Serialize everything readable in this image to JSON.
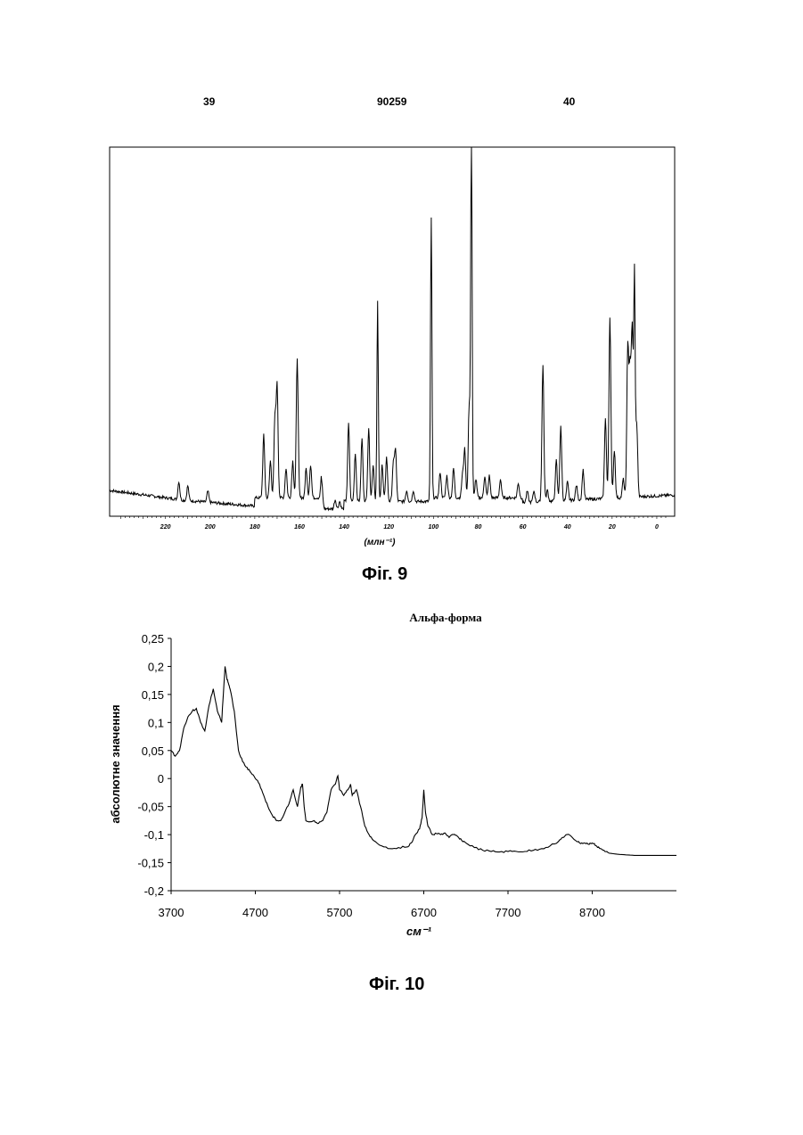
{
  "header": {
    "left": "39",
    "center": "90259",
    "right": "40"
  },
  "figures": {
    "fig9_caption": "Фіг. 9",
    "fig10_caption": "Фіг. 10"
  },
  "chart_data": [
    {
      "type": "line",
      "xlabel": "(млн⁻¹)",
      "xlim": [
        245,
        -8
      ],
      "xticks": [
        220,
        200,
        180,
        160,
        140,
        120,
        100,
        80,
        60,
        40,
        20,
        0
      ],
      "xtick_labels": [
        "220",
        "200",
        "180",
        "160",
        "140",
        "120",
        "100",
        "80",
        "60",
        "40",
        "20",
        "0"
      ],
      "ylim": [
        0,
        1
      ],
      "peaks": [
        [
          214,
          0.05
        ],
        [
          210,
          0.04
        ],
        [
          201,
          0.03
        ],
        [
          176,
          0.17
        ],
        [
          173,
          0.1
        ],
        [
          171,
          0.21
        ],
        [
          170,
          0.3
        ],
        [
          166,
          0.08
        ],
        [
          163,
          0.1
        ],
        [
          161,
          0.38
        ],
        [
          157,
          0.08
        ],
        [
          155,
          0.09
        ],
        [
          150,
          0.07
        ],
        [
          144,
          0.025
        ],
        [
          142,
          0.02
        ],
        [
          138,
          0.21
        ],
        [
          135,
          0.13
        ],
        [
          132,
          0.17
        ],
        [
          129,
          0.2
        ],
        [
          127,
          0.1
        ],
        [
          125,
          0.54
        ],
        [
          123,
          0.1
        ],
        [
          121,
          0.12
        ],
        [
          118,
          0.1
        ],
        [
          117,
          0.14
        ],
        [
          112,
          0.03
        ],
        [
          109,
          0.03
        ],
        [
          101,
          0.77
        ],
        [
          97,
          0.07
        ],
        [
          94,
          0.06
        ],
        [
          91,
          0.08
        ],
        [
          87,
          0.06
        ],
        [
          86,
          0.13
        ],
        [
          84,
          0.25
        ],
        [
          83,
          1.0
        ],
        [
          81,
          0.05
        ],
        [
          77,
          0.06
        ],
        [
          75,
          0.06
        ],
        [
          70,
          0.05
        ],
        [
          62,
          0.04
        ],
        [
          58,
          0.03
        ],
        [
          55,
          0.03
        ],
        [
          51,
          0.37
        ],
        [
          49,
          0.03
        ],
        [
          45,
          0.11
        ],
        [
          43,
          0.2
        ],
        [
          40,
          0.05
        ],
        [
          36,
          0.04
        ],
        [
          33,
          0.08
        ],
        [
          23,
          0.22
        ],
        [
          21,
          0.49
        ],
        [
          19,
          0.13
        ],
        [
          15,
          0.05
        ],
        [
          13,
          0.4
        ],
        [
          12,
          0.33
        ],
        [
          11,
          0.45
        ],
        [
          10,
          0.59
        ],
        [
          9,
          0.2
        ]
      ]
    },
    {
      "type": "line",
      "title": "Альфа-форма",
      "xlabel": "см⁻¹",
      "ylabel": "абсолютне значення",
      "xlim": [
        3700,
        9700
      ],
      "ylim": [
        -0.2,
        0.25
      ],
      "xticks": [
        3700,
        4700,
        5700,
        6700,
        7700,
        8700
      ],
      "xtick_labels": [
        "3700",
        "4700",
        "5700",
        "6700",
        "7700",
        "8700"
      ],
      "yticks": [
        -0.2,
        -0.15,
        -0.1,
        -0.05,
        0,
        0.05,
        0.1,
        0.15,
        0.2,
        0.25
      ],
      "ytick_labels": [
        "-0,2",
        "-0,15",
        "-0,1",
        "-0,05",
        "0",
        "0,05",
        "0,1",
        "0,15",
        "0,2",
        "0,25"
      ],
      "x": [
        3700,
        3750,
        3800,
        3850,
        3900,
        3950,
        4000,
        4050,
        4100,
        4150,
        4200,
        4250,
        4300,
        4320,
        4340,
        4360,
        4380,
        4400,
        4450,
        4500,
        4550,
        4600,
        4650,
        4700,
        4750,
        4800,
        4850,
        4900,
        4950,
        5000,
        5050,
        5100,
        5120,
        5150,
        5200,
        5240,
        5260,
        5280,
        5300,
        5350,
        5400,
        5450,
        5500,
        5550,
        5600,
        5650,
        5680,
        5700,
        5750,
        5800,
        5830,
        5850,
        5900,
        5950,
        6000,
        6050,
        6100,
        6200,
        6300,
        6400,
        6500,
        6550,
        6600,
        6650,
        6680,
        6700,
        6720,
        6750,
        6800,
        6850,
        6900,
        6950,
        7000,
        7050,
        7100,
        7150,
        7200,
        7300,
        7400,
        7500,
        7600,
        7700,
        7800,
        7900,
        8000,
        8100,
        8200,
        8300,
        8350,
        8400,
        8450,
        8500,
        8550,
        8600,
        8650,
        8700,
        8750,
        8800,
        8850,
        8900,
        9000,
        9100,
        9200,
        9300,
        9400,
        9500,
        9600,
        9700
      ],
      "y": [
        0.05,
        0.04,
        0.05,
        0.09,
        0.11,
        0.12,
        0.125,
        0.1,
        0.085,
        0.13,
        0.16,
        0.12,
        0.1,
        0.15,
        0.2,
        0.18,
        0.17,
        0.16,
        0.12,
        0.05,
        0.03,
        0.02,
        0.01,
        0.0,
        -0.01,
        -0.03,
        -0.05,
        -0.065,
        -0.075,
        -0.075,
        -0.06,
        -0.045,
        -0.035,
        -0.02,
        -0.05,
        -0.015,
        -0.01,
        -0.05,
        -0.075,
        -0.077,
        -0.075,
        -0.08,
        -0.075,
        -0.06,
        -0.02,
        -0.01,
        0.005,
        -0.02,
        -0.03,
        -0.02,
        -0.01,
        -0.03,
        -0.02,
        -0.05,
        -0.085,
        -0.1,
        -0.11,
        -0.12,
        -0.125,
        -0.123,
        -0.122,
        -0.115,
        -0.1,
        -0.09,
        -0.07,
        -0.02,
        -0.06,
        -0.085,
        -0.1,
        -0.098,
        -0.1,
        -0.097,
        -0.105,
        -0.1,
        -0.103,
        -0.11,
        -0.115,
        -0.123,
        -0.128,
        -0.13,
        -0.131,
        -0.13,
        -0.13,
        -0.13,
        -0.128,
        -0.125,
        -0.12,
        -0.112,
        -0.105,
        -0.1,
        -0.103,
        -0.11,
        -0.115,
        -0.115,
        -0.117,
        -0.115,
        -0.12,
        -0.125,
        -0.13,
        -0.133,
        -0.135,
        -0.136,
        -0.137,
        -0.137,
        -0.137,
        -0.137,
        -0.137,
        -0.137
      ]
    }
  ]
}
